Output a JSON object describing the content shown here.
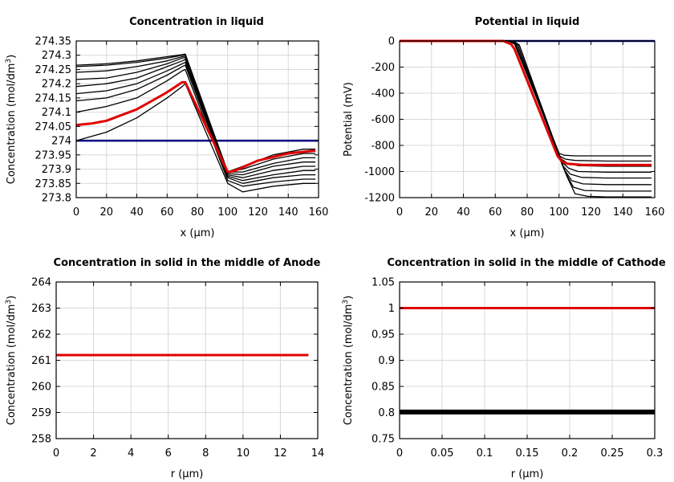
{
  "chart_data": [
    {
      "type": "line",
      "title": "Concentration in liquid",
      "xlabel": "x (µm)",
      "ylabel_main": "Concentration (mol/dm",
      "ylabel_sup": "3",
      "ylabel_tail": ")",
      "xlim": [
        0,
        160
      ],
      "ylim": [
        273.8,
        274.35
      ],
      "xticks": [
        "0",
        "20",
        "40",
        "60",
        "80",
        "100",
        "120",
        "140",
        "160"
      ],
      "yticks": [
        "273.8",
        "273.85",
        "273.9",
        "273.95",
        "274",
        "274.05",
        "274.1",
        "274.15",
        "274.2",
        "274.25",
        "274.3",
        "274.35"
      ],
      "grid": true,
      "series": [
        {
          "color": "#000080",
          "x": [
            0,
            160
          ],
          "values": [
            274.0,
            274.0
          ]
        },
        {
          "color": "#000000",
          "x": [
            0,
            20,
            40,
            60,
            70,
            72,
            100,
            110,
            130,
            150,
            158
          ],
          "values": [
            274.0,
            274.03,
            274.08,
            274.15,
            274.19,
            274.2,
            273.85,
            273.82,
            273.84,
            273.85,
            273.85
          ]
        },
        {
          "color": "#000000",
          "x": [
            0,
            20,
            40,
            60,
            70,
            72,
            100,
            110,
            130,
            150,
            158
          ],
          "values": [
            274.1,
            274.12,
            274.15,
            274.21,
            274.245,
            274.25,
            273.86,
            273.84,
            273.855,
            273.865,
            273.865
          ]
        },
        {
          "color": "#000000",
          "x": [
            0,
            20,
            40,
            60,
            70,
            72,
            100,
            110,
            130,
            150,
            158
          ],
          "values": [
            274.14,
            274.15,
            274.18,
            274.23,
            274.26,
            274.265,
            273.87,
            273.85,
            273.87,
            273.88,
            273.88
          ]
        },
        {
          "color": "#000000",
          "x": [
            0,
            20,
            40,
            60,
            70,
            72,
            100,
            110,
            130,
            150,
            158
          ],
          "values": [
            274.165,
            274.175,
            274.2,
            274.245,
            274.27,
            274.275,
            273.875,
            273.86,
            273.88,
            273.895,
            273.895
          ]
        },
        {
          "color": "#000000",
          "x": [
            0,
            20,
            40,
            60,
            70,
            72,
            100,
            110,
            130,
            150,
            158
          ],
          "values": [
            274.19,
            274.2,
            274.22,
            274.26,
            274.28,
            274.285,
            273.88,
            273.87,
            273.895,
            273.91,
            273.91
          ]
        },
        {
          "color": "#000000",
          "x": [
            0,
            20,
            40,
            60,
            70,
            72,
            100,
            110,
            130,
            150,
            158
          ],
          "values": [
            274.215,
            274.22,
            274.24,
            274.27,
            274.29,
            274.292,
            273.885,
            273.88,
            273.91,
            273.925,
            273.925
          ]
        },
        {
          "color": "#000000",
          "x": [
            0,
            20,
            40,
            60,
            70,
            72,
            100,
            110,
            130,
            150,
            158
          ],
          "values": [
            274.24,
            274.245,
            274.26,
            274.28,
            274.295,
            274.297,
            273.89,
            273.89,
            273.92,
            273.94,
            273.94
          ]
        },
        {
          "color": "#000000",
          "x": [
            0,
            20,
            40,
            60,
            70,
            72,
            100,
            110,
            130,
            150,
            158
          ],
          "values": [
            274.26,
            274.265,
            274.275,
            274.29,
            274.3,
            274.302,
            273.89,
            273.9,
            273.935,
            273.955,
            273.955
          ]
        },
        {
          "color": "#000000",
          "x": [
            0,
            20,
            40,
            60,
            70,
            72,
            100,
            110,
            130,
            150,
            158
          ],
          "values": [
            274.265,
            274.27,
            274.28,
            274.295,
            274.302,
            274.304,
            273.89,
            273.91,
            273.95,
            273.97,
            273.97
          ]
        },
        {
          "color": "#e00000",
          "x": [
            0,
            10,
            20,
            30,
            40,
            50,
            60,
            70,
            72,
            100,
            105,
            120,
            140,
            158
          ],
          "values": [
            274.055,
            274.06,
            274.07,
            274.09,
            274.11,
            274.14,
            274.17,
            274.205,
            274.205,
            273.89,
            273.895,
            273.93,
            273.955,
            273.965
          ]
        }
      ]
    },
    {
      "type": "line",
      "title": "Potential in liquid",
      "xlabel": "x (µm)",
      "ylabel_main": "Potential (mV)",
      "ylabel_sup": "",
      "ylabel_tail": "",
      "xlim": [
        0,
        160
      ],
      "ylim": [
        -1200,
        0
      ],
      "xticks": [
        "0",
        "20",
        "40",
        "60",
        "80",
        "100",
        "120",
        "140",
        "160"
      ],
      "yticks": [
        "-1200",
        "-1000",
        "-800",
        "-600",
        "-400",
        "-200",
        "0"
      ],
      "grid": true,
      "series": [
        {
          "color": "#000080",
          "x": [
            0,
            160
          ],
          "values": [
            0,
            0
          ]
        },
        {
          "color": "#000000",
          "x": [
            0,
            68,
            72,
            100,
            103,
            110,
            130,
            158
          ],
          "values": [
            0,
            0,
            -20,
            -860,
            -875,
            -880,
            -880,
            -880
          ]
        },
        {
          "color": "#000000",
          "x": [
            0,
            69,
            73,
            100,
            104,
            110,
            130,
            158
          ],
          "values": [
            0,
            0,
            -30,
            -880,
            -905,
            -915,
            -920,
            -920
          ]
        },
        {
          "color": "#000000",
          "x": [
            0,
            69,
            73,
            101,
            105,
            112,
            130,
            158
          ],
          "values": [
            0,
            0,
            -30,
            -900,
            -935,
            -955,
            -960,
            -960
          ]
        },
        {
          "color": "#000000",
          "x": [
            0,
            70,
            74,
            102,
            106,
            112,
            130,
            158
          ],
          "values": [
            0,
            0,
            -30,
            -930,
            -975,
            -1000,
            -1005,
            -1005
          ]
        },
        {
          "color": "#000000",
          "x": [
            0,
            70,
            74,
            102,
            107,
            114,
            130,
            158
          ],
          "values": [
            0,
            0,
            -30,
            -950,
            -1020,
            -1045,
            -1050,
            -1050
          ]
        },
        {
          "color": "#000000",
          "x": [
            0,
            70,
            74,
            103,
            108,
            115,
            130,
            158
          ],
          "values": [
            0,
            0,
            -30,
            -980,
            -1070,
            -1095,
            -1100,
            -1100
          ]
        },
        {
          "color": "#000000",
          "x": [
            0,
            71,
            75,
            104,
            109,
            116,
            130,
            158
          ],
          "values": [
            0,
            0,
            -30,
            -1010,
            -1120,
            -1145,
            -1150,
            -1150
          ]
        },
        {
          "color": "#000000",
          "x": [
            0,
            71,
            75,
            105,
            110,
            118,
            130,
            158
          ],
          "values": [
            0,
            0,
            -30,
            -1040,
            -1170,
            -1190,
            -1195,
            -1195
          ]
        },
        {
          "color": "#e00000",
          "x": [
            0,
            65,
            70,
            72,
            99,
            102,
            105,
            115,
            140,
            158
          ],
          "values": [
            0,
            0,
            -25,
            -60,
            -880,
            -925,
            -940,
            -950,
            -950,
            -950
          ]
        }
      ]
    },
    {
      "type": "line",
      "title": "Concentration in solid in the middle of Anode",
      "xlabel": "r (µm)",
      "ylabel_main": "Concentration (mol/dm",
      "ylabel_sup": "3",
      "ylabel_tail": ")",
      "xlim": [
        0,
        14
      ],
      "ylim": [
        258,
        264
      ],
      "xticks": [
        "0",
        "2",
        "4",
        "6",
        "8",
        "10",
        "12",
        "14"
      ],
      "yticks": [
        "258",
        "259",
        "260",
        "261",
        "262",
        "263",
        "264"
      ],
      "grid": true,
      "series": [
        {
          "color": "#e00000",
          "x": [
            0,
            13.5
          ],
          "values": [
            261.2,
            261.2
          ]
        }
      ]
    },
    {
      "type": "line",
      "title": "Concentration in solid in the middle of Cathode",
      "xlabel": "r (µm)",
      "ylabel_main": "Concentration (mol/dm",
      "ylabel_sup": "3",
      "ylabel_tail": ")",
      "xlim": [
        0,
        0.3
      ],
      "ylim": [
        0.75,
        1.05
      ],
      "xticks": [
        "0",
        "0.05",
        "0.1",
        "0.15",
        "0.2",
        "0.25",
        "0.3"
      ],
      "yticks": [
        "0.75",
        "0.8",
        "0.85",
        "0.9",
        "0.95",
        "1",
        "1.05"
      ],
      "grid": true,
      "series": [
        {
          "color": "#000000",
          "width": 6,
          "x": [
            0,
            0.3
          ],
          "values": [
            0.801,
            0.801
          ]
        },
        {
          "color": "#e00000",
          "x": [
            0,
            0.3
          ],
          "values": [
            1.0,
            1.0
          ]
        }
      ]
    }
  ]
}
